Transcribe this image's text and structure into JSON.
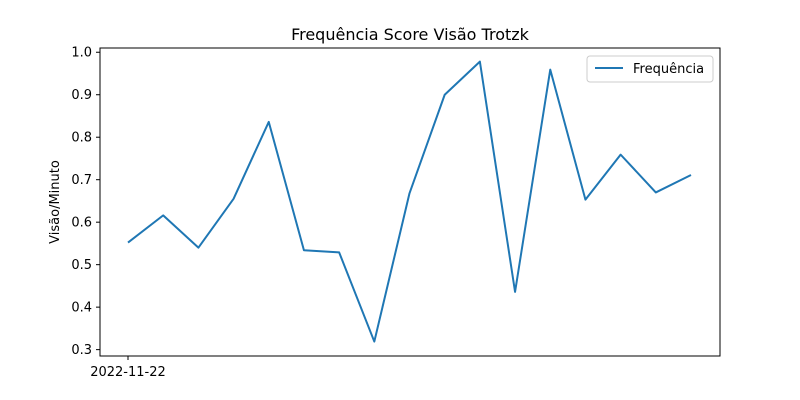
{
  "chart_data": {
    "type": "line",
    "title": "Frequência Score Visão Trotzk",
    "xlabel": "",
    "ylabel": "Visão/Minuto",
    "x_tick_labels": [
      "2022-11-22"
    ],
    "y_ticks": [
      0.3,
      0.4,
      0.5,
      0.6,
      0.7,
      0.8,
      0.9,
      1.0
    ],
    "y_tick_labels": [
      "0.3",
      "0.4",
      "0.5",
      "0.6",
      "0.7",
      "0.8",
      "0.9",
      "1.0"
    ],
    "ylim": [
      0.285,
      1.01
    ],
    "grid": false,
    "legend_position": "top-right",
    "series": [
      {
        "name": "Frequência",
        "color": "#1f77b4",
        "values": [
          0.552,
          0.616,
          0.54,
          0.655,
          0.836,
          0.534,
          0.529,
          0.319,
          0.668,
          0.9,
          0.978,
          0.436,
          0.959,
          0.653,
          0.759,
          0.67,
          0.711
        ]
      }
    ]
  }
}
